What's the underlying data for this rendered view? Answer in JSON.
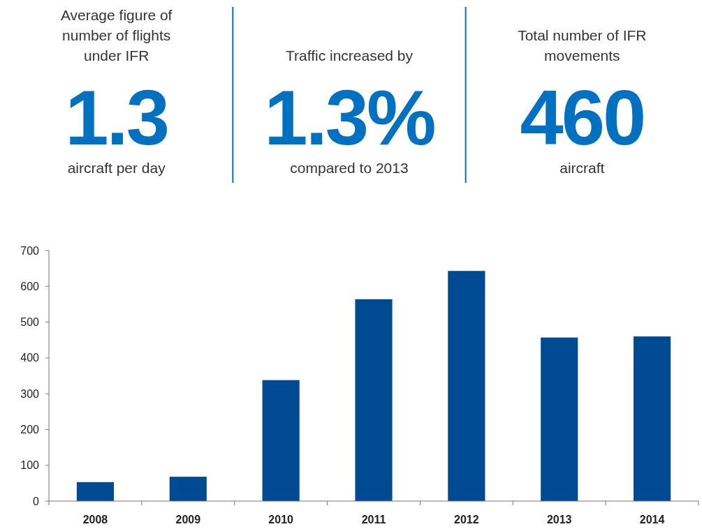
{
  "chart_data": [
    {
      "type": "other",
      "title": "Average figure of number of flights under IFR",
      "annotations": [
        "1.3",
        "aircraft per day"
      ]
    },
    {
      "type": "other",
      "title": "Traffic increased by",
      "annotations": [
        "1.3%",
        "compared to 2013"
      ]
    },
    {
      "type": "other",
      "title": "Total number of IFR movements",
      "annotations": [
        "460",
        "aircraft"
      ]
    },
    {
      "type": "bar",
      "categories": [
        "2008",
        "2009",
        "2010",
        "2011",
        "2012",
        "2013",
        "2014"
      ],
      "values": [
        53,
        68,
        338,
        564,
        643,
        457,
        460
      ],
      "color": "#004a93",
      "ylim": [
        0,
        700
      ],
      "yticks": [
        0,
        100,
        200,
        300,
        400,
        500,
        600,
        700
      ],
      "grid": false
    }
  ]
}
